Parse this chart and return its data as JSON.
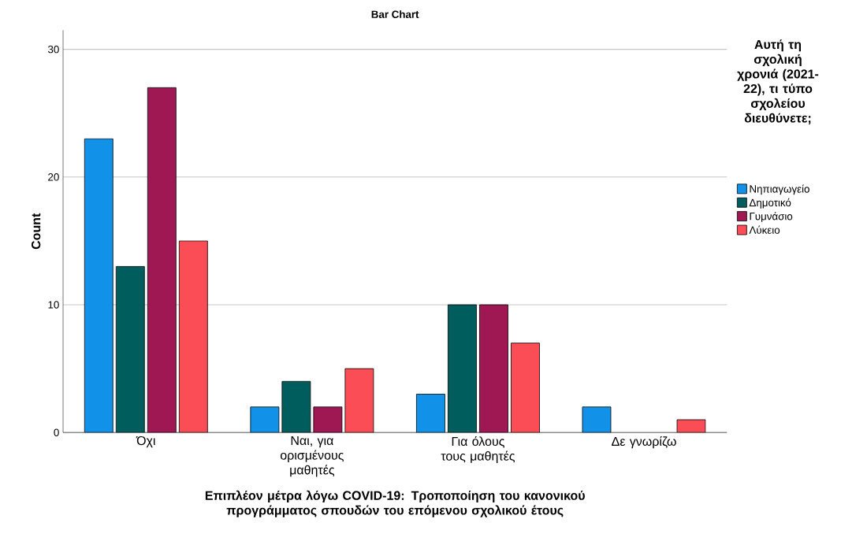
{
  "chart_data": {
    "type": "bar",
    "title": "Bar Chart",
    "xlabel": "Επιπλέον μέτρα λόγω COVID-19: Τροποποίηση του κανονικού προγράμματος σπουδών του επόμενου σχολικού έτους",
    "ylabel": "Count",
    "legend_title": "Αυτή τη σχολική χρονιά (2021-22), τι τύπο σχολείου διευθύνετε;",
    "categories": [
      "Όχι",
      "Ναι, για ορισμένους μαθητές",
      "Για όλους τους μαθητές",
      "Δε γνωρίζω"
    ],
    "series": [
      {
        "name": "Νηπιαγωγείο",
        "color": "#1192e8",
        "values": [
          23,
          2,
          3,
          2
        ]
      },
      {
        "name": "Δημοτικό",
        "color": "#005d5d",
        "values": [
          13,
          4,
          10,
          0
        ]
      },
      {
        "name": "Γυμνάσιο",
        "color": "#9f1853",
        "values": [
          27,
          2,
          10,
          0
        ]
      },
      {
        "name": "Λύκειο",
        "color": "#fa4d56",
        "values": [
          15,
          5,
          7,
          1
        ]
      }
    ],
    "ylim": [
      0,
      31.5
    ],
    "yticks": [
      0,
      10,
      20,
      30
    ],
    "grid": "y",
    "legend": "right"
  }
}
